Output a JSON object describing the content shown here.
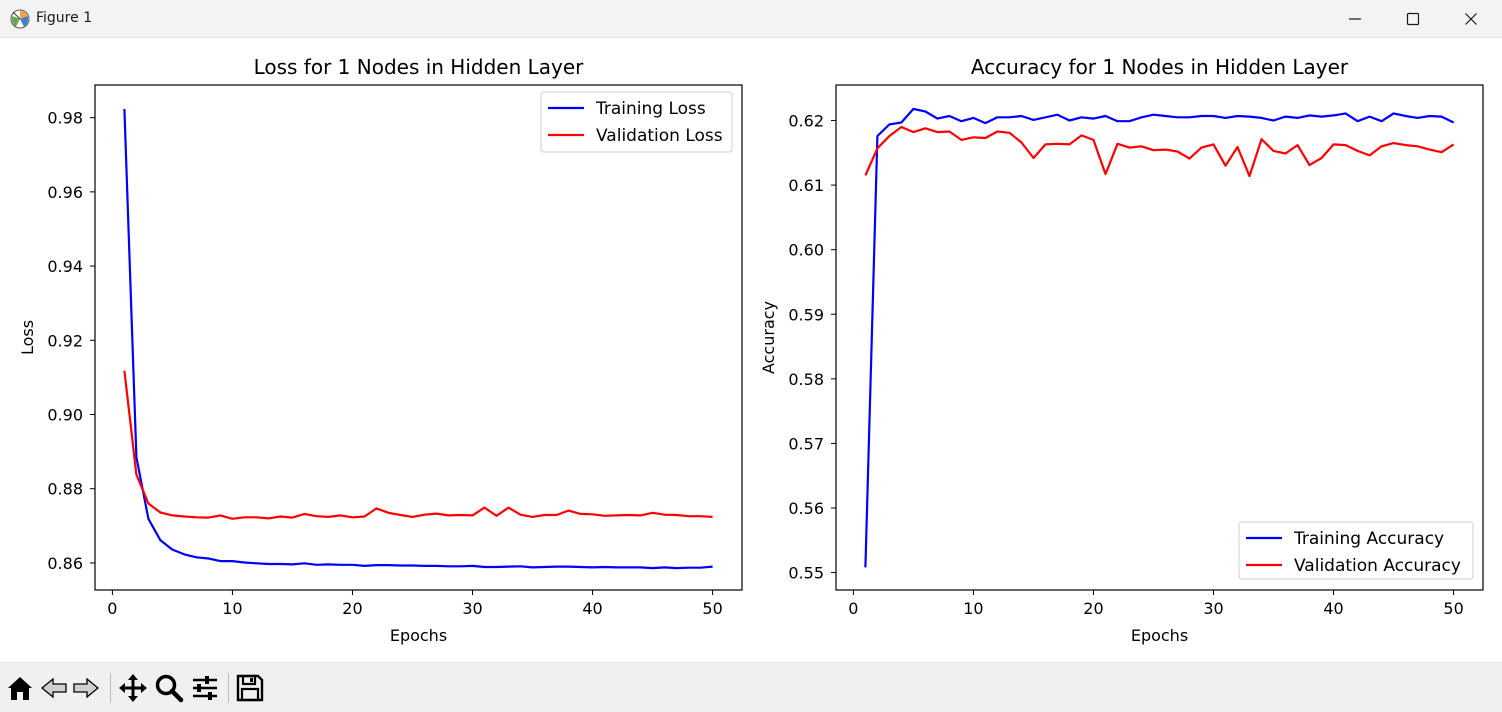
{
  "window": {
    "title": "Figure 1",
    "icons": [
      "matplotlib-icon",
      "minimize-icon",
      "maximize-icon",
      "close-icon"
    ]
  },
  "toolbar": {
    "icons": [
      "home-icon",
      "back-arrow-icon",
      "forward-arrow-icon",
      "pan-icon",
      "zoom-icon",
      "configure-subplots-icon",
      "save-icon"
    ]
  },
  "chart_data": [
    {
      "type": "line",
      "title": "Loss for 1 Nodes in Hidden Layer",
      "xlabel": "Epochs",
      "ylabel": "Loss",
      "xlim": [
        -1.45,
        52.45
      ],
      "ylim": [
        0.8527,
        0.9888
      ],
      "xticks": [
        0,
        10,
        20,
        30,
        40,
        50
      ],
      "yticks": [
        0.86,
        0.88,
        0.9,
        0.92,
        0.94,
        0.96,
        0.98
      ],
      "ytick_labels": [
        "0.86",
        "0.88",
        "0.90",
        "0.92",
        "0.94",
        "0.96",
        "0.98"
      ],
      "legend_position": "top-right",
      "grid": false,
      "x": [
        1,
        2,
        3,
        4,
        5,
        6,
        7,
        8,
        9,
        10,
        11,
        12,
        13,
        14,
        15,
        16,
        17,
        18,
        19,
        20,
        21,
        22,
        23,
        24,
        25,
        26,
        27,
        28,
        29,
        30,
        31,
        32,
        33,
        34,
        35,
        36,
        37,
        38,
        39,
        40,
        41,
        42,
        43,
        44,
        45,
        46,
        47,
        48,
        49,
        50
      ],
      "series": [
        {
          "name": "Training Loss",
          "color": "#0000ff",
          "values": [
            0.9823,
            0.8885,
            0.8719,
            0.8661,
            0.8636,
            0.8623,
            0.8615,
            0.8612,
            0.8605,
            0.8605,
            0.8601,
            0.8599,
            0.8597,
            0.8597,
            0.8596,
            0.8599,
            0.8595,
            0.8596,
            0.8595,
            0.8595,
            0.8592,
            0.8594,
            0.8594,
            0.8593,
            0.8593,
            0.8592,
            0.8592,
            0.8591,
            0.8591,
            0.8592,
            0.8589,
            0.8589,
            0.859,
            0.8591,
            0.8588,
            0.8589,
            0.859,
            0.859,
            0.8589,
            0.8588,
            0.8589,
            0.8588,
            0.8588,
            0.8588,
            0.8586,
            0.8588,
            0.8586,
            0.8587,
            0.8587,
            0.859
          ]
        },
        {
          "name": "Validation Loss",
          "color": "#ff0000",
          "values": [
            0.9118,
            0.8838,
            0.876,
            0.8736,
            0.8728,
            0.8725,
            0.8723,
            0.8722,
            0.8728,
            0.8719,
            0.8723,
            0.8723,
            0.872,
            0.8725,
            0.8722,
            0.8732,
            0.8726,
            0.8724,
            0.8728,
            0.8723,
            0.8725,
            0.8747,
            0.8735,
            0.8729,
            0.8724,
            0.873,
            0.8733,
            0.8728,
            0.8729,
            0.8728,
            0.8749,
            0.8727,
            0.8749,
            0.873,
            0.8724,
            0.8729,
            0.8729,
            0.8741,
            0.8732,
            0.8731,
            0.8727,
            0.8728,
            0.8729,
            0.8728,
            0.8735,
            0.873,
            0.8729,
            0.8726,
            0.8726,
            0.8724
          ]
        }
      ]
    },
    {
      "type": "line",
      "title": "Accuracy for 1 Nodes in Hidden Layer",
      "xlabel": "Epochs",
      "ylabel": "Accuracy",
      "xlim": [
        -1.45,
        52.45
      ],
      "ylim": [
        0.5473,
        0.6255
      ],
      "xticks": [
        0,
        10,
        20,
        30,
        40,
        50
      ],
      "yticks": [
        0.55,
        0.56,
        0.57,
        0.58,
        0.59,
        0.6,
        0.61,
        0.62
      ],
      "ytick_labels": [
        "0.55",
        "0.56",
        "0.57",
        "0.58",
        "0.59",
        "0.60",
        "0.61",
        "0.62"
      ],
      "legend_position": "bottom-right",
      "grid": false,
      "x": [
        1,
        2,
        3,
        4,
        5,
        6,
        7,
        8,
        9,
        10,
        11,
        12,
        13,
        14,
        15,
        16,
        17,
        18,
        19,
        20,
        21,
        22,
        23,
        24,
        25,
        26,
        27,
        28,
        29,
        30,
        31,
        32,
        33,
        34,
        35,
        36,
        37,
        38,
        39,
        40,
        41,
        42,
        43,
        44,
        45,
        46,
        47,
        48,
        49,
        50
      ],
      "series": [
        {
          "name": "Training Accuracy",
          "color": "#0000ff",
          "values": [
            0.5508,
            0.6176,
            0.6194,
            0.6197,
            0.6218,
            0.6214,
            0.6203,
            0.6207,
            0.6199,
            0.6204,
            0.6196,
            0.6205,
            0.6205,
            0.6207,
            0.6201,
            0.6205,
            0.6209,
            0.62,
            0.6205,
            0.6203,
            0.6207,
            0.6199,
            0.6199,
            0.6205,
            0.6209,
            0.6207,
            0.6205,
            0.6205,
            0.6207,
            0.6207,
            0.6204,
            0.6207,
            0.6206,
            0.6204,
            0.62,
            0.6206,
            0.6204,
            0.6208,
            0.6206,
            0.6208,
            0.6211,
            0.6199,
            0.6206,
            0.6199,
            0.6211,
            0.6207,
            0.6204,
            0.6207,
            0.6206,
            0.6197
          ]
        },
        {
          "name": "Validation Accuracy",
          "color": "#ff0000",
          "values": [
            0.6115,
            0.6157,
            0.6176,
            0.619,
            0.6182,
            0.6188,
            0.6182,
            0.6183,
            0.617,
            0.6174,
            0.6173,
            0.6183,
            0.6181,
            0.6166,
            0.6142,
            0.6163,
            0.6164,
            0.6163,
            0.6177,
            0.617,
            0.6117,
            0.6164,
            0.6158,
            0.616,
            0.6154,
            0.6155,
            0.6152,
            0.6141,
            0.6158,
            0.6163,
            0.613,
            0.6159,
            0.6114,
            0.6171,
            0.6153,
            0.6149,
            0.6162,
            0.6131,
            0.6142,
            0.6163,
            0.6162,
            0.6153,
            0.6146,
            0.616,
            0.6165,
            0.6162,
            0.616,
            0.6155,
            0.6151,
            0.6163
          ]
        }
      ]
    }
  ]
}
